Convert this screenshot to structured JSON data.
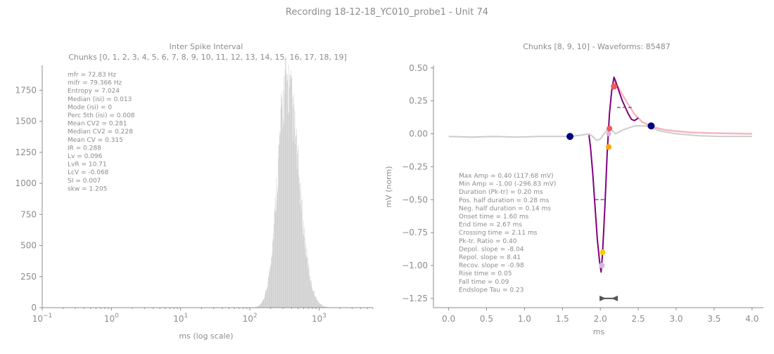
{
  "suptitle": "Recording 18-12-18_YC010_probe1 - Unit 74",
  "colors": {
    "text": "#8c8c8c",
    "axis": "#8c8c8c",
    "hist": "#cfcfcf",
    "waveform_mean": "#800080",
    "waveform_other": "#cccccc",
    "fit": "#f4b6c2",
    "marker_dark": "#00007f",
    "marker_red": "#f05a5a",
    "marker_orange": "#ffa500",
    "marker_yellow": "#ffc800",
    "marker_lilac": "#d4b3e6",
    "dash": "#555555"
  },
  "chart_data": [
    {
      "type": "bar",
      "title": "Inter Spike Interval",
      "subtitle": "Chunks [0, 1, 2, 3, 4, 5, 6, 7, 8, 9, 10, 11, 12, 13, 14, 15, 16, 17, 18, 19]",
      "xlabel": "ms (log scale)",
      "ylabel": "",
      "xscale": "log",
      "xlim": [
        0.1,
        6000
      ],
      "ylim": [
        0,
        1950
      ],
      "xticks": [
        {
          "value": 0.1,
          "base": "10",
          "exp": "−1"
        },
        {
          "value": 1,
          "base": "10",
          "exp": "0"
        },
        {
          "value": 10,
          "base": "10",
          "exp": "1"
        },
        {
          "value": 100,
          "base": "10",
          "exp": "2"
        },
        {
          "value": 1000,
          "base": "10",
          "exp": "3"
        }
      ],
      "yticks": [
        0,
        250,
        500,
        750,
        1000,
        1250,
        1500,
        1750
      ],
      "distribution": {
        "shape": "log-normal histogram",
        "peak_ms": 340,
        "peak_count": 1860,
        "log10_sigma_left": 0.13,
        "log10_sigma_right": 0.17,
        "range_ms": [
          100,
          4000
        ]
      },
      "stats": [
        "mfr = 72.83 Hz",
        "mifr = 79.366 Hz",
        "Entropy = 7.024",
        "Median (isi) = 0.013",
        "Mode (isi) = 0",
        "Perc 5th (isi) = 0.008",
        "Mean CV2 = 0.281",
        "Median CV2 = 0.228",
        "Mean CV = 0.315",
        "IR = 0.288",
        "Lv = 0.096",
        "LvR = 10.71",
        "LcV = -0.068",
        "SI = 0.007",
        "skw = 1.205"
      ]
    },
    {
      "type": "line",
      "title": "Chunks [8, 9, 10] - Waveforms: 85487",
      "xlabel": "ms",
      "ylabel": "mV (norm)",
      "xlim": [
        -0.2,
        4.15
      ],
      "ylim": [
        -1.32,
        0.52
      ],
      "xticks": [
        0.0,
        0.5,
        1.0,
        1.5,
        2.0,
        2.5,
        3.0,
        3.5,
        4.0
      ],
      "xtick_labels": [
        "0.0",
        "0.5",
        "1.0",
        "1.5",
        "2.0",
        "2.5",
        "3.0",
        "3.5",
        "4.0"
      ],
      "yticks": [
        0.5,
        0.25,
        0.0,
        -0.25,
        -0.5,
        -0.75,
        -1.0,
        -1.25
      ],
      "ytick_labels": [
        "0.50",
        "0.25",
        "0.00",
        "−0.25",
        "−0.50",
        "−0.75",
        "−1.00",
        "−1.25"
      ],
      "series": [
        {
          "role": "other-waveform",
          "x": [
            0.0,
            0.3,
            0.6,
            0.9,
            1.2,
            1.5,
            1.6,
            1.75,
            1.85,
            1.9,
            1.95,
            2.0,
            2.05,
            2.1,
            2.15,
            2.2,
            2.3,
            2.45,
            2.6,
            2.8,
            3.0,
            3.3,
            3.6,
            4.0
          ],
          "y": [
            -0.02,
            -0.025,
            -0.02,
            -0.025,
            -0.02,
            -0.02,
            -0.02,
            -0.01,
            0.0,
            -0.02,
            -0.05,
            -0.04,
            0.0,
            0.04,
            0.03,
            0.0,
            0.03,
            0.06,
            0.06,
            0.02,
            0.0,
            -0.015,
            -0.02,
            -0.02
          ]
        },
        {
          "role": "mean-waveform",
          "x": [
            1.85,
            1.87,
            1.9,
            1.93,
            1.96,
            1.99,
            2.01,
            2.03,
            2.06,
            2.09,
            2.12,
            2.15,
            2.18,
            2.2,
            2.23,
            2.26,
            2.29,
            2.33,
            2.37,
            2.41,
            2.45,
            2.5
          ],
          "y": [
            -0.01,
            -0.1,
            -0.3,
            -0.55,
            -0.8,
            -0.97,
            -1.05,
            -0.9,
            -0.55,
            -0.15,
            0.15,
            0.33,
            0.43,
            0.4,
            0.35,
            0.3,
            0.25,
            0.2,
            0.15,
            0.11,
            0.1,
            0.12
          ]
        },
        {
          "role": "fit",
          "x": [
            2.18,
            2.25,
            2.35,
            2.45,
            2.55,
            2.7,
            2.85,
            3.0,
            3.2,
            3.5,
            3.8,
            4.0
          ],
          "y": [
            0.41,
            0.34,
            0.24,
            0.15,
            0.09,
            0.05,
            0.03,
            0.02,
            0.01,
            0.005,
            0.002,
            0.0
          ]
        }
      ],
      "markers": [
        {
          "x": 1.6,
          "y": -0.02,
          "color": "marker_dark",
          "size": 5
        },
        {
          "x": 2.67,
          "y": 0.06,
          "color": "marker_dark",
          "size": 5
        },
        {
          "x": 2.18,
          "y": 0.36,
          "color": "marker_red",
          "size": 4.5
        },
        {
          "x": 2.12,
          "y": 0.04,
          "color": "marker_red",
          "size": 4
        },
        {
          "x": 2.11,
          "y": -0.1,
          "color": "marker_orange",
          "size": 4
        },
        {
          "x": 2.03,
          "y": -0.9,
          "color": "marker_yellow",
          "size": 4
        },
        {
          "x": 2.02,
          "y": -1.0,
          "color": "marker_lilac",
          "size": 4
        },
        {
          "x": 2.11,
          "y": 0.0,
          "color": "marker_lilac",
          "size": 3.5
        }
      ],
      "dashed_lines": [
        {
          "x": [
            2.22,
            2.44
          ],
          "y": [
            0.2,
            0.2
          ]
        },
        {
          "x": [
            1.93,
            2.08
          ],
          "y": [
            -0.5,
            -0.5
          ]
        }
      ],
      "duration_arrow": {
        "x": [
          1.99,
          2.23
        ],
        "y": -1.25
      },
      "stats": [
        "Max Amp = 0.40 (117.68 mV)",
        "Min Amp = -1.00 (-296.83 mV)",
        "Duration (Pk-tr) = 0.20 ms",
        "Pos. half duration = 0.28 ms",
        "Neg. half duration = 0.14 ms",
        "Onset time = 1.60 ms",
        "End time = 2.67 ms",
        "Crossing time = 2.11 ms",
        "Pk-tr. Ratio = 0.40",
        "Depol. slope = -8.04",
        "Repol. slope = 8.41",
        "Recov. slope = -0.98",
        "Rise time = 0.05",
        "Fall time = 0.09",
        "Endslope Tau = 0.23"
      ]
    }
  ]
}
